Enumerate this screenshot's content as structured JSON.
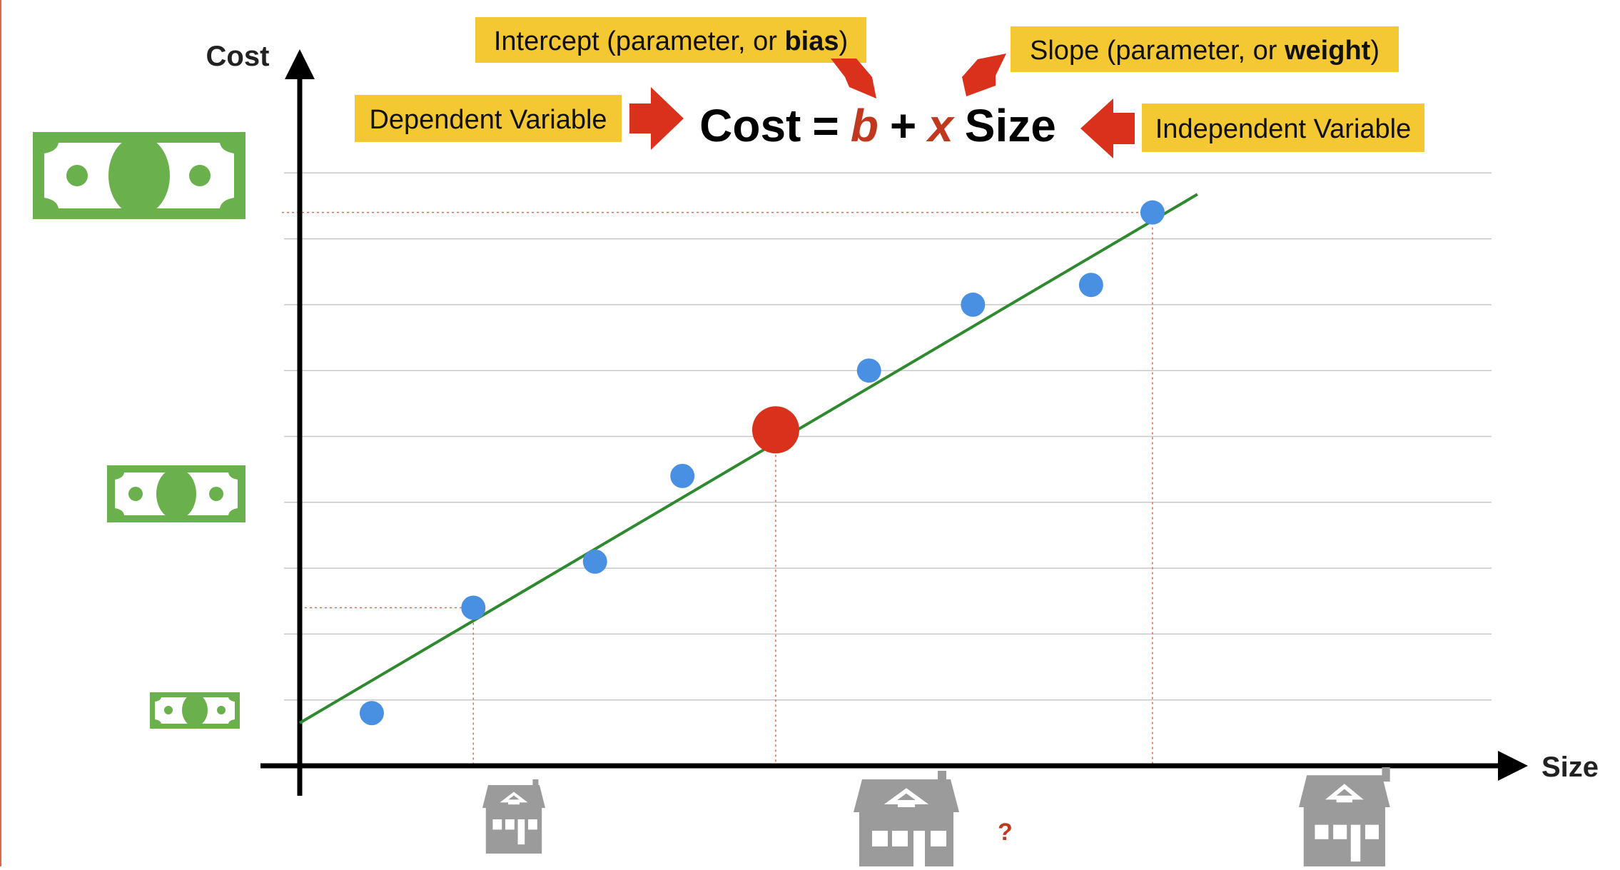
{
  "axes": {
    "y_label": "Cost",
    "x_label": "Size"
  },
  "equation": {
    "lhs": "Cost",
    "equals": "=",
    "intercept_symbol": "b",
    "plus": "+",
    "slope_symbol": "x",
    "rhs_variable": "Size"
  },
  "callouts": {
    "dependent": "Dependent Variable",
    "independent": "Independent Variable",
    "intercept_prefix": "Intercept (parameter, or ",
    "intercept_bold": "bias",
    "intercept_suffix": ")",
    "slope_prefix": "Slope (parameter, or ",
    "slope_bold": "weight",
    "slope_suffix": ")"
  },
  "prediction_marker": "?",
  "colors": {
    "point": "#4a90e2",
    "prediction": "#d9311c",
    "fit_line": "#2f8a2f",
    "callout_bg": "#f4c832",
    "arrow": "#d9311c",
    "money": "#6ab04c",
    "house": "#9b9b9b",
    "symbol": "#c0391e"
  },
  "chart_data": {
    "type": "scatter",
    "xlim": [
      0,
      10
    ],
    "ylim": [
      0,
      10
    ],
    "points": [
      {
        "x": 0.61,
        "y": 0.8
      },
      {
        "x": 1.47,
        "y": 2.4
      },
      {
        "x": 2.5,
        "y": 3.1
      },
      {
        "x": 3.24,
        "y": 4.4
      },
      {
        "x": 4.03,
        "y": 5.1
      },
      {
        "x": 4.82,
        "y": 6.0
      },
      {
        "x": 5.7,
        "y": 7.0
      },
      {
        "x": 6.7,
        "y": 7.3
      },
      {
        "x": 7.22,
        "y": 8.4
      }
    ],
    "prediction": {
      "x": 4.03,
      "y": 5.1
    },
    "fit_line": {
      "intercept": 0.65,
      "slope": 1.056
    },
    "guide_lines": [
      {
        "x": 1.47,
        "y": 2.4
      },
      {
        "x": 4.03,
        "y": 5.1
      },
      {
        "x": 7.22,
        "y": 8.4
      }
    ],
    "gridlines_y": [
      1,
      2,
      3,
      4,
      5,
      6,
      7,
      8,
      9
    ]
  }
}
